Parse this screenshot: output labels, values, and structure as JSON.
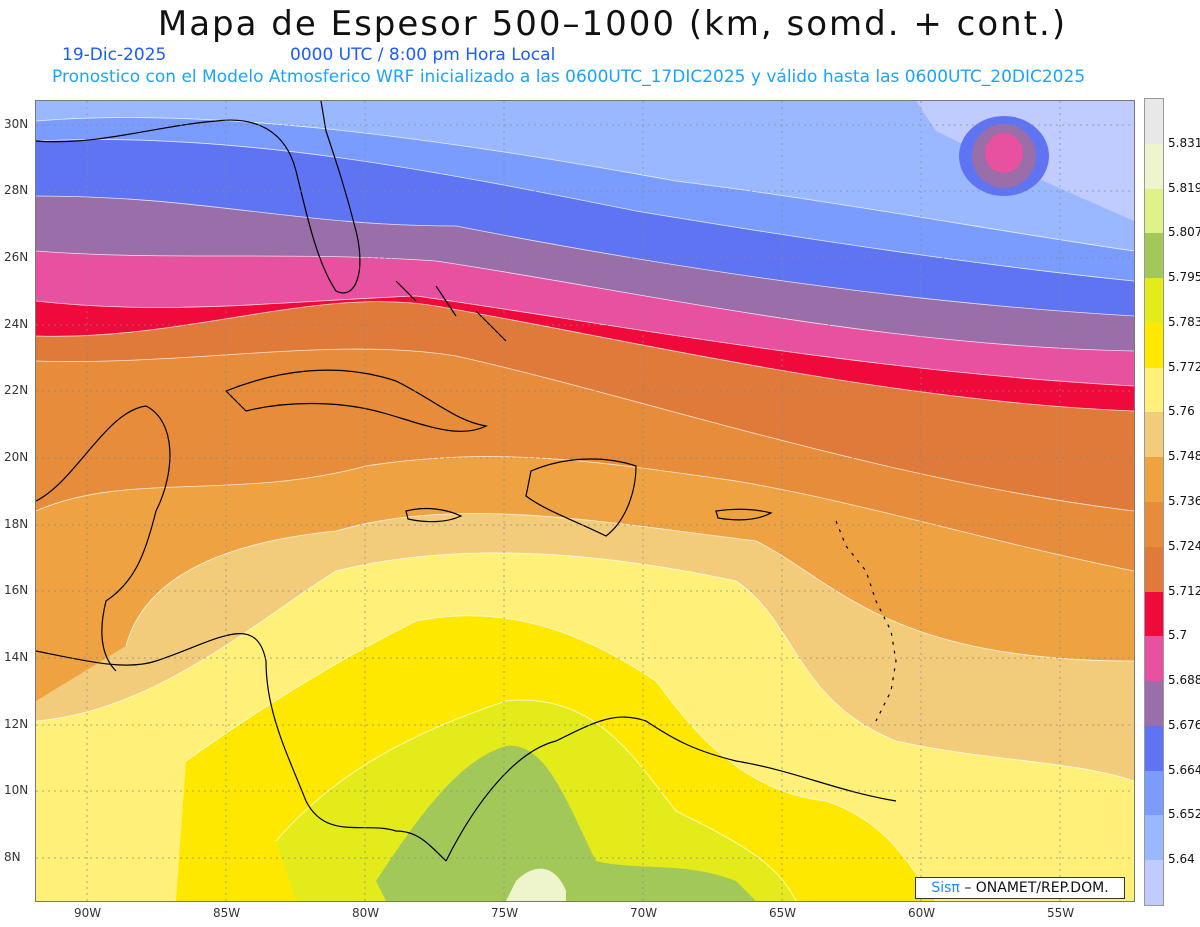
{
  "title": "Mapa de Espesor 500–1000 (km, somd. + cont.)",
  "date": "19-Dic-2025",
  "time": "0000 UTC / 8:00 pm Hora Local",
  "description": "Pronostico con el Modelo Atmosferico WRF inicializado a las 0600UTC_17DIC2025 y válido hasta las  0600UTC_20DIC2025",
  "lon_labels": [
    "90W",
    "85W",
    "80W",
    "75W",
    "70W",
    "65W",
    "60W",
    "55W"
  ],
  "lat_labels": [
    "30N",
    "28N",
    "26N",
    "24N",
    "22N",
    "20N",
    "18N",
    "16N",
    "14N",
    "12N",
    "10N",
    "8N"
  ],
  "colorbar": {
    "labels": [
      "5.831",
      "5.819",
      "5.807",
      "5.795",
      "5.783",
      "5.772",
      "5.76",
      "5.748",
      "5.736",
      "5.724",
      "5.712",
      "5.7",
      "5.688",
      "5.676",
      "5.664",
      "5.652",
      "5.64"
    ],
    "colors": [
      "#e8e8e8",
      "#eef5cc",
      "#dff28a",
      "#a3c85a",
      "#e3ec1a",
      "#ffe800",
      "#fff07a",
      "#f2cc7a",
      "#eea242",
      "#e68c3a",
      "#df7a3a",
      "#f00a3c",
      "#e850a0",
      "#9a6ea8",
      "#5f74f2",
      "#7a9cff",
      "#9ab8ff",
      "#c0ccff"
    ]
  },
  "credit": {
    "brand": "Sisπ",
    "org": "– ONAMET/REP.DOM."
  }
}
